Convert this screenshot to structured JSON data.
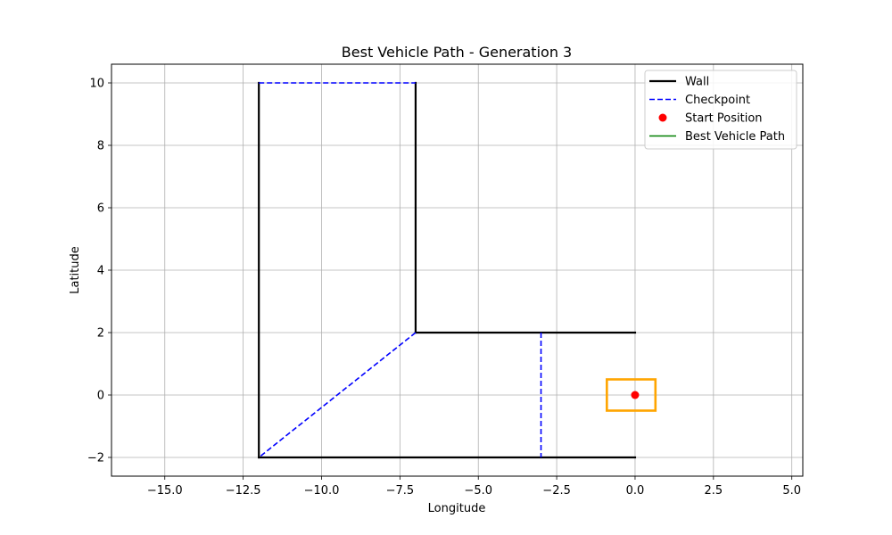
{
  "chart_data": {
    "type": "line",
    "title": "Best Vehicle Path - Generation 3",
    "xlabel": "Longitude",
    "ylabel": "Latitude",
    "xlim": [
      -16.7,
      5.35
    ],
    "ylim": [
      -2.6,
      10.6
    ],
    "xticks": [
      -15.0,
      -12.5,
      -10.0,
      -7.5,
      -5.0,
      -2.5,
      0.0,
      2.5,
      5.0
    ],
    "xtick_labels": [
      "−15.0",
      "−12.5",
      "−10.0",
      "−7.5",
      "−5.0",
      "−2.5",
      "0.0",
      "2.5",
      "5.0"
    ],
    "yticks": [
      -2,
      0,
      2,
      4,
      6,
      8,
      10
    ],
    "ytick_labels": [
      "−2",
      "0",
      "2",
      "4",
      "6",
      "8",
      "10"
    ],
    "grid": true,
    "legend_position": "top-right",
    "legend": [
      {
        "label": "Wall",
        "kind": "line",
        "color": "#000000",
        "style": "solid"
      },
      {
        "label": "Checkpoint",
        "kind": "line",
        "color": "#0000ff",
        "style": "dashed"
      },
      {
        "label": "Start Position",
        "kind": "marker",
        "color": "#ff0000"
      },
      {
        "label": "Best Vehicle Path",
        "kind": "line",
        "color": "#008000",
        "style": "solid"
      }
    ],
    "walls": [
      {
        "x": [
          -12,
          -12
        ],
        "y": [
          -2,
          10
        ]
      },
      {
        "x": [
          -7,
          -7
        ],
        "y": [
          2,
          10
        ]
      },
      {
        "x": [
          -7,
          0
        ],
        "y": [
          2,
          2
        ]
      },
      {
        "x": [
          -12,
          0
        ],
        "y": [
          -2,
          -2
        ]
      }
    ],
    "checkpoints": [
      {
        "x": [
          -12,
          -7
        ],
        "y": [
          10,
          10
        ]
      },
      {
        "x": [
          -7,
          -12
        ],
        "y": [
          2,
          -2
        ]
      },
      {
        "x": [
          -3,
          -3
        ],
        "y": [
          2,
          -2
        ]
      }
    ],
    "start_position": {
      "x": 0,
      "y": 0
    },
    "vehicle_box": {
      "x": [
        -0.9,
        0.65
      ],
      "y": [
        -0.5,
        0.5
      ],
      "color": "#ffa500"
    },
    "best_vehicle_path": {
      "x": [],
      "y": []
    }
  }
}
